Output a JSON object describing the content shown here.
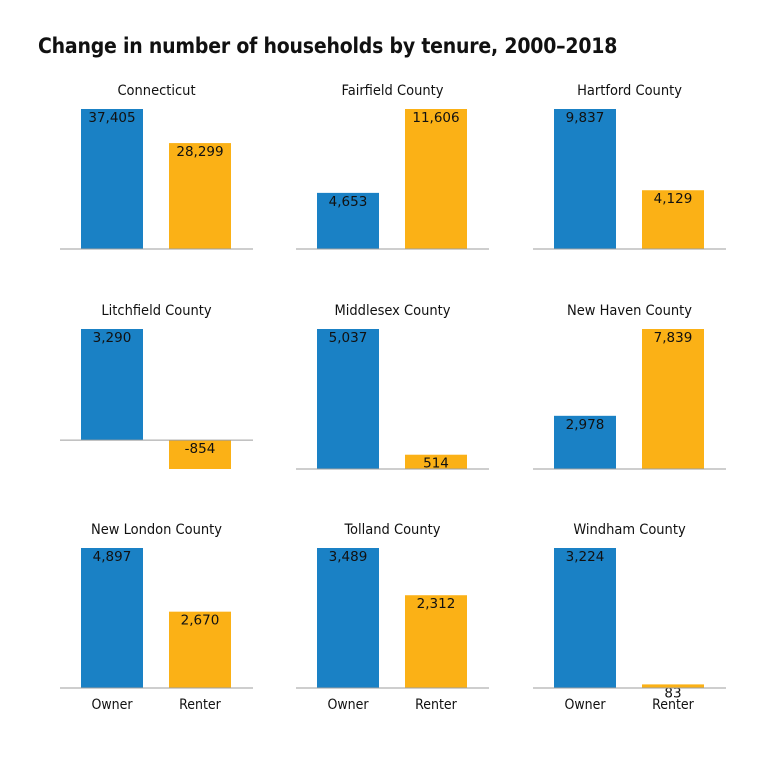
{
  "chart_data": {
    "type": "bar",
    "title": "Change in number of households by tenure, 2000–2018",
    "categories": [
      "Owner",
      "Renter"
    ],
    "colors": {
      "Owner": "#1a81c5",
      "Renter": "#fbb116"
    },
    "facet_scales": "free",
    "panels": [
      {
        "title": "Connecticut",
        "values": [
          37405,
          28299
        ],
        "labels": [
          "37,405",
          "28,299"
        ]
      },
      {
        "title": "Fairfield County",
        "values": [
          4653,
          11606
        ],
        "labels": [
          "4,653",
          "11,606"
        ]
      },
      {
        "title": "Hartford County",
        "values": [
          9837,
          4129
        ],
        "labels": [
          "9,837",
          "4,129"
        ]
      },
      {
        "title": "Litchfield County",
        "values": [
          3290,
          -854
        ],
        "labels": [
          "3,290",
          "-854"
        ]
      },
      {
        "title": "Middlesex County",
        "values": [
          5037,
          514
        ],
        "labels": [
          "5,037",
          "514"
        ]
      },
      {
        "title": "New Haven County",
        "values": [
          2978,
          7839
        ],
        "labels": [
          "2,978",
          "7,839"
        ]
      },
      {
        "title": "New London County",
        "values": [
          4897,
          2670
        ],
        "labels": [
          "4,897",
          "2,670"
        ]
      },
      {
        "title": "Tolland County",
        "values": [
          3489,
          2312
        ],
        "labels": [
          "3,489",
          "2,312"
        ]
      },
      {
        "title": "Windham County",
        "values": [
          3224,
          83
        ],
        "labels": [
          "3,224",
          "83"
        ]
      }
    ]
  }
}
